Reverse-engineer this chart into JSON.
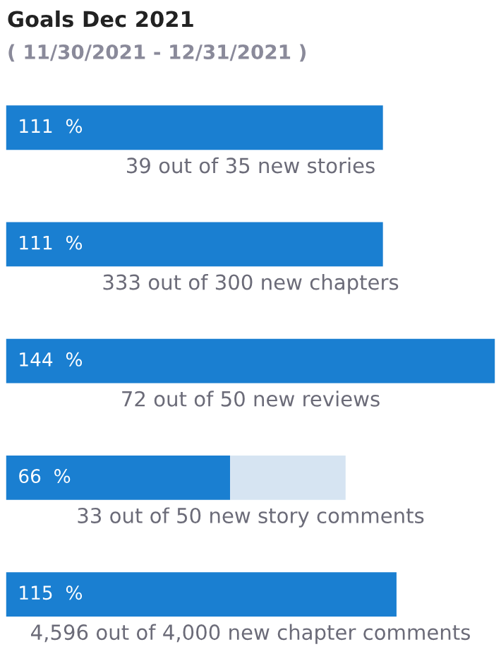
{
  "chart_data": {
    "type": "bar",
    "orientation": "horizontal",
    "stacked": true,
    "title": "Goals Dec 2021",
    "subtitle": "( 11/30/2021 - 12/31/2021 )",
    "categories": [
      "39 out of 35 new stories",
      "333 out of 300 new chapters",
      "72 out of 50 new reviews",
      "33 out of 50 new story comments",
      "4,596 out of 4,000 new chapter comments"
    ],
    "series": [
      {
        "color": "#1a7fd1",
        "values": [
          111,
          111,
          144,
          66,
          115
        ],
        "value_labels": [
          "111  %",
          "111  %",
          "144  %",
          "66  %",
          "115  %"
        ]
      },
      {
        "color": "#d6e4f2",
        "values": [
          null,
          null,
          null,
          34,
          null
        ]
      }
    ],
    "xlim": [
      0,
      144
    ]
  }
}
